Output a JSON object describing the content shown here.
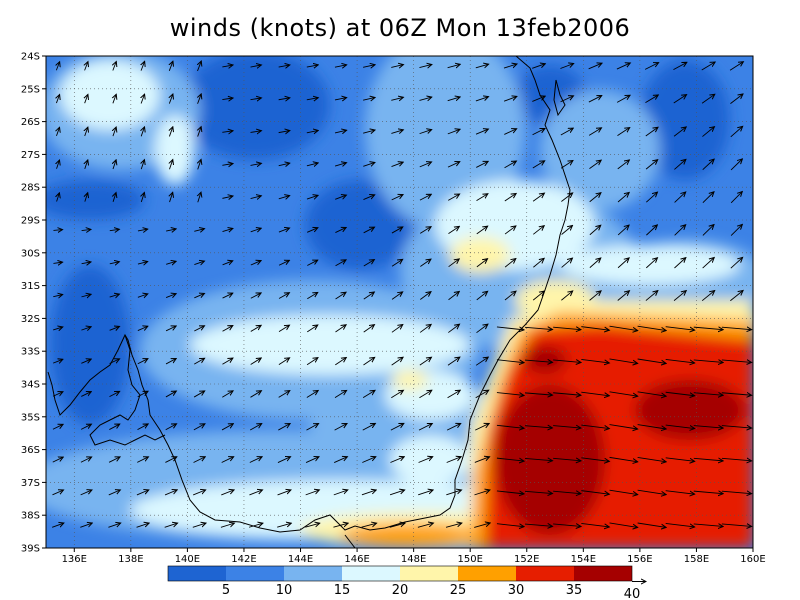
{
  "title": "winds (knots) at 06Z Mon 13feb2006",
  "map": {
    "type": "filled-contour-with-vectors",
    "variable": "winds",
    "units": "knots",
    "lon_range": [
      135,
      160
    ],
    "lat_range": [
      -39,
      -24
    ],
    "lon_ticks": [
      "136E",
      "138E",
      "140E",
      "142E",
      "144E",
      "146E",
      "148E",
      "150E",
      "152E",
      "154E",
      "156E",
      "158E",
      "160E"
    ],
    "lat_ticks": [
      "24S",
      "25S",
      "26S",
      "27S",
      "28S",
      "29S",
      "30S",
      "31S",
      "32S",
      "33S",
      "34S",
      "35S",
      "36S",
      "37S",
      "38S",
      "39S"
    ],
    "grid": true,
    "grid_style": "dotted"
  },
  "colorbar": {
    "labels": [
      "5",
      "10",
      "15",
      "20",
      "25",
      "30",
      "35",
      "40"
    ],
    "colors": [
      "#1e64d2",
      "#3c82e6",
      "#78b4f0",
      "#dcf8ff",
      "#fff5aa",
      "#ffa000",
      "#e61e00",
      "#a50000"
    ]
  },
  "colors": {
    "land_outline": "#000000",
    "arrows": "#000000"
  }
}
